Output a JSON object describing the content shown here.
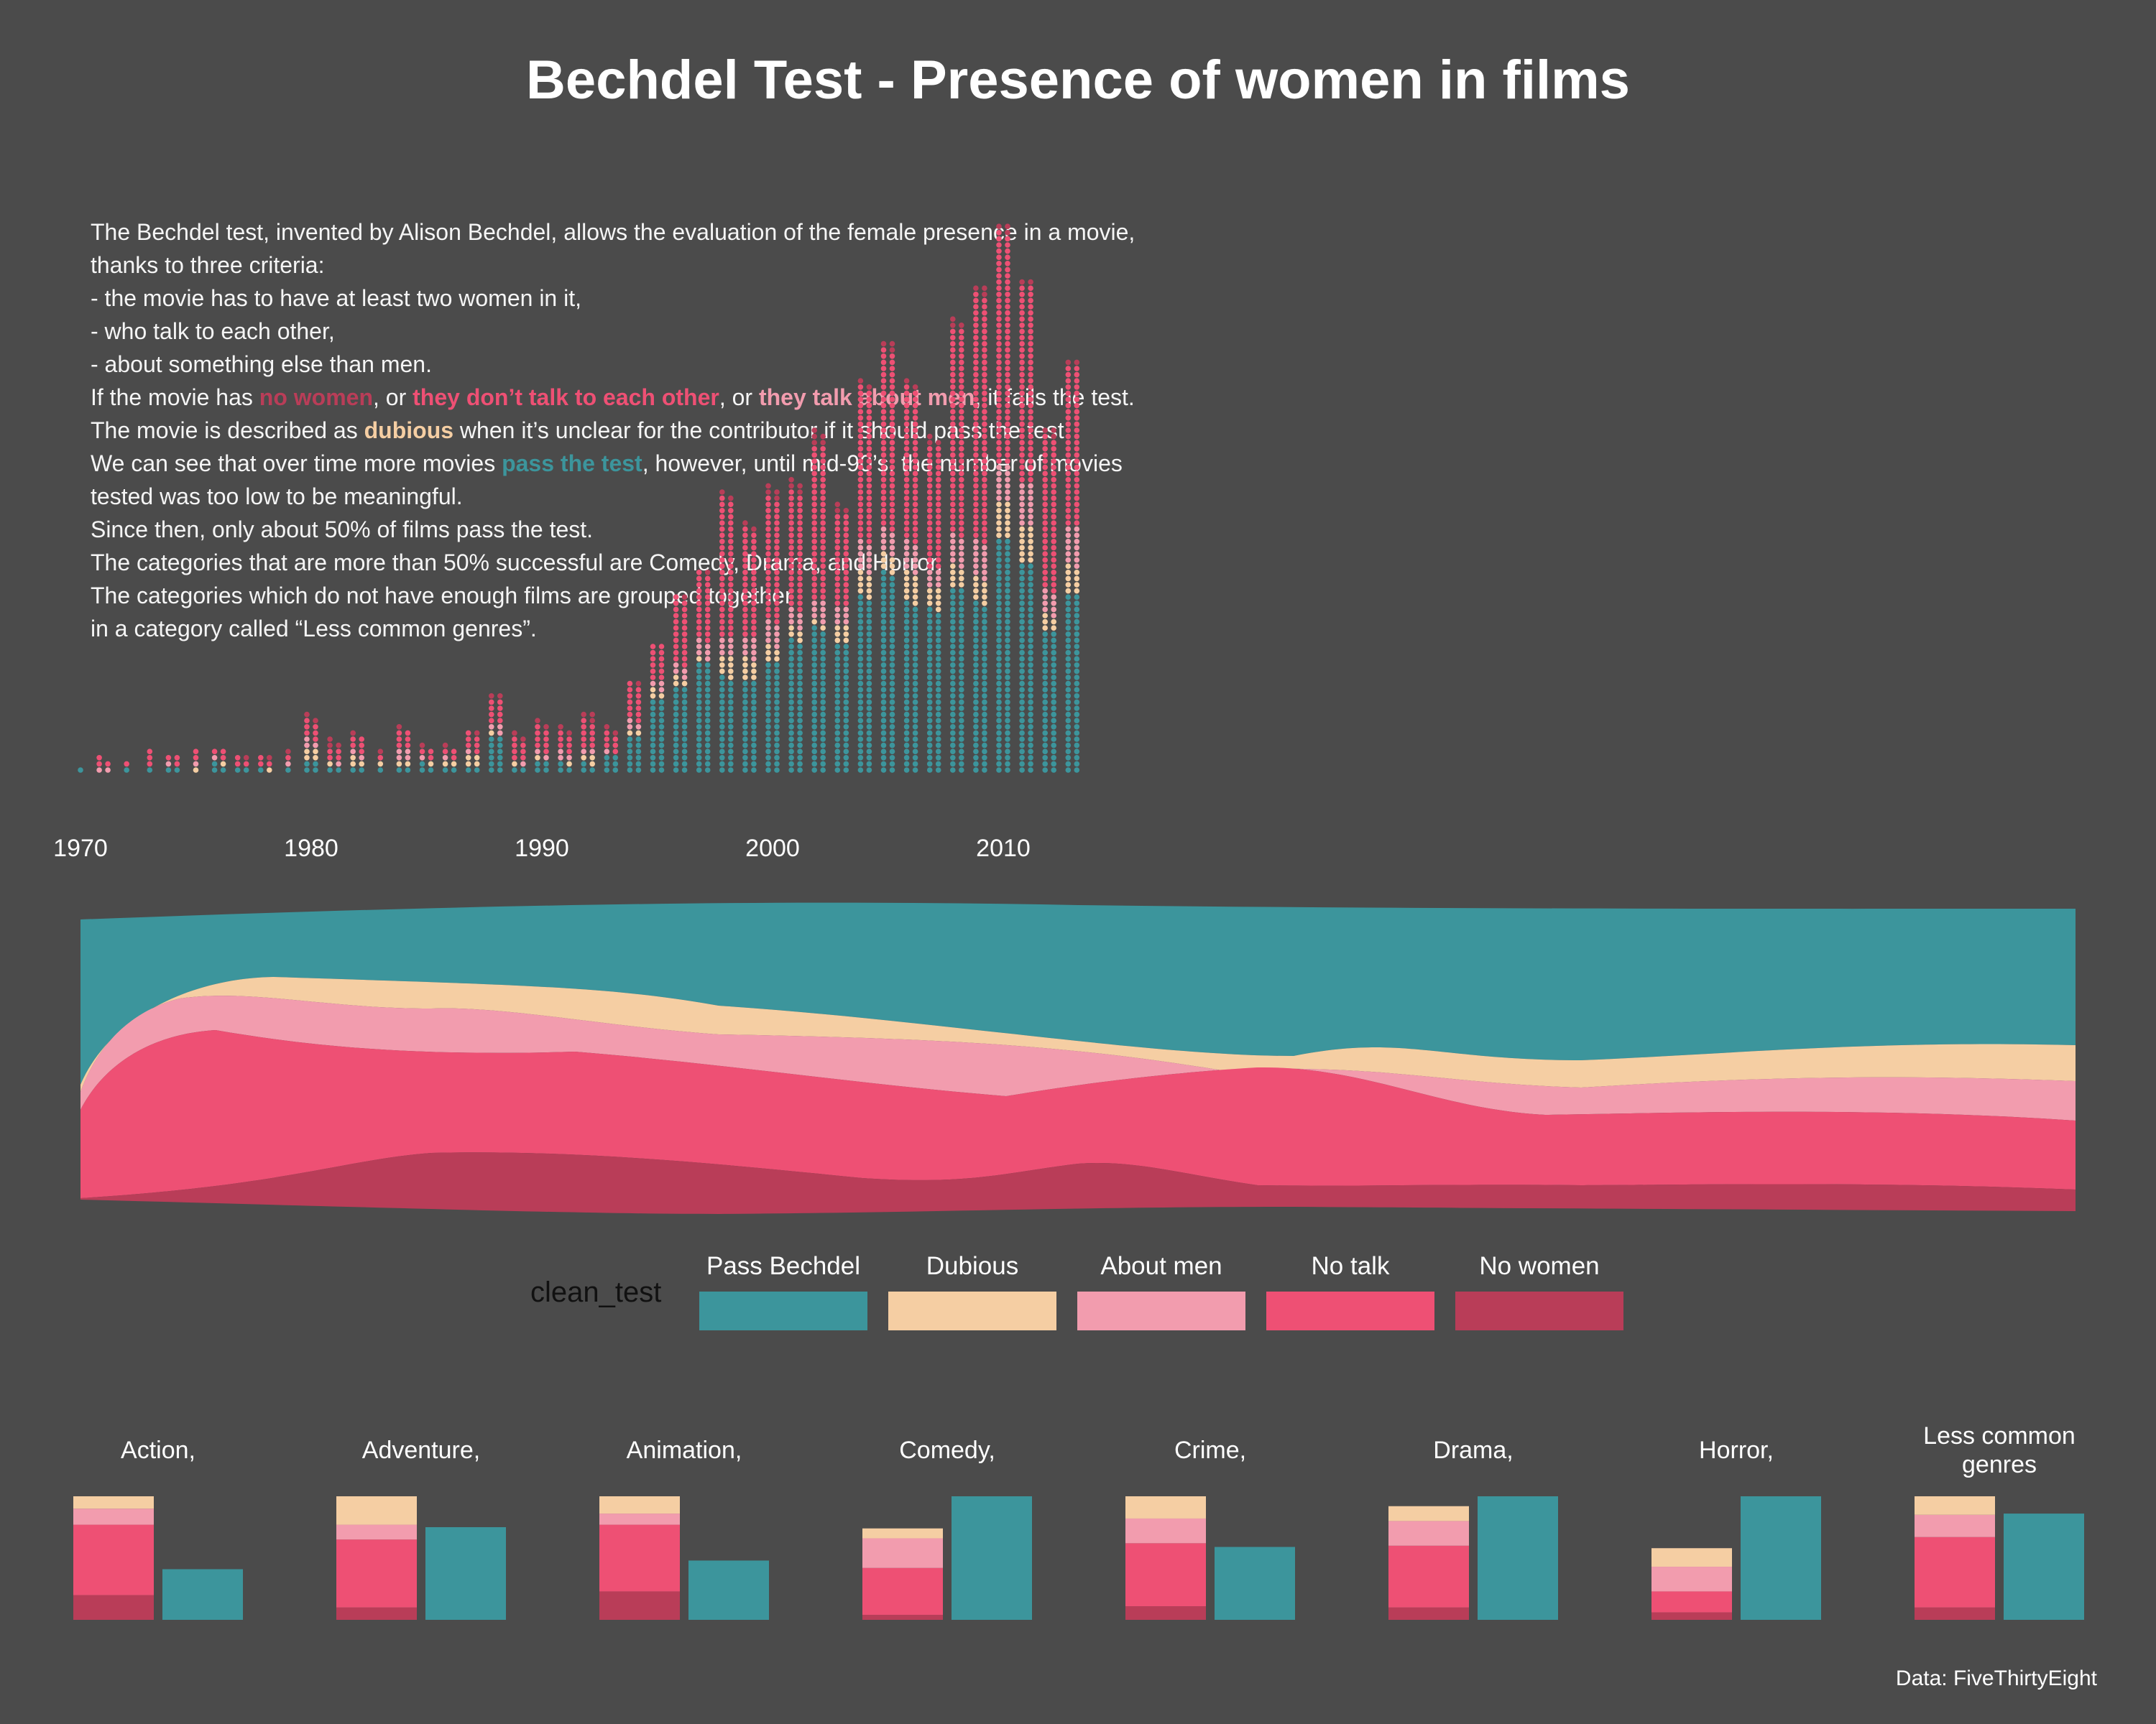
{
  "title": "Bechdel Test - Presence of women in films",
  "intro": [
    {
      "parts": [
        {
          "text": "The Bechdel test, invented by Alison Bechdel, allows the evaluation of the female presence in a movie,"
        }
      ]
    },
    {
      "parts": [
        {
          "text": "thanks to three criteria:"
        }
      ]
    },
    {
      "parts": [
        {
          "text": "- the movie has to have at least two women in it,"
        }
      ]
    },
    {
      "parts": [
        {
          "text": "- who talk to each other,"
        }
      ]
    },
    {
      "parts": [
        {
          "text": "- about something else than men."
        }
      ]
    },
    {
      "parts": [
        {
          "text": "If the movie has "
        },
        {
          "text": "no women",
          "color": "#b93d58"
        },
        {
          "text": ", or "
        },
        {
          "text": "they don’t talk to each other",
          "color": "#ee5074"
        },
        {
          "text": ", or "
        },
        {
          "text": "they talk about men",
          "color": "#f29cae"
        },
        {
          "text": ", it fails the test."
        }
      ]
    },
    {
      "parts": [
        {
          "text": "The movie is described as "
        },
        {
          "text": "dubious",
          "color": "#f5cea3"
        },
        {
          "text": " when it’s unclear for the contributor if it should pass the test."
        }
      ]
    },
    {
      "parts": [
        {
          "text": "We can see that over time more movies "
        },
        {
          "text": "pass the test",
          "color": "#3c959c"
        },
        {
          "text": ", however, until mid-90’s, the number of movies"
        }
      ]
    },
    {
      "parts": [
        {
          "text": "tested was too low to be meaningful."
        }
      ]
    },
    {
      "parts": [
        {
          "text": "Since then, only about 50% of films pass the test."
        }
      ]
    },
    {
      "parts": [
        {
          "text": "The categories that are more than 50% successful are Comedy, Drama, and Horror."
        }
      ]
    },
    {
      "parts": [
        {
          "text": "The categories which do not have enough films are grouped together"
        }
      ]
    },
    {
      "parts": [
        {
          "text": "in a category called “Less common genres”."
        }
      ]
    }
  ],
  "source": "Data: FiveThirtyEight",
  "colors": {
    "background": "#4b4b4b",
    "pass": "#3c959c",
    "dubious": "#f5cea3",
    "men": "#f29cae",
    "notalk": "#ee5074",
    "nowomen": "#b93d58",
    "text": "#ffffff"
  },
  "chart_data": [
    {
      "type": "scatter",
      "subtype": "stacked-dot-columns",
      "x_ticks": [
        "1970",
        "1980",
        "1990",
        "2000",
        "2010"
      ],
      "category_order_bottom_to_top": [
        "Pass Bechdel",
        "Dubious",
        "About men",
        "No talk",
        "No women"
      ],
      "years": [
        1970,
        1971,
        1972,
        1973,
        1974,
        1975,
        1976,
        1977,
        1978,
        1979,
        1980,
        1981,
        1982,
        1983,
        1984,
        1985,
        1986,
        1987,
        1988,
        1989,
        1990,
        1991,
        1992,
        1993,
        1994,
        1995,
        1996,
        1997,
        1998,
        1999,
        2000,
        2001,
        2002,
        2003,
        2004,
        2005,
        2006,
        2007,
        2008,
        2009,
        2010,
        2011,
        2012,
        2013
      ],
      "series": [
        {
          "name": "Pass Bechdel",
          "values": [
            1,
            0,
            1,
            1,
            2,
            0,
            3,
            2,
            1,
            1,
            4,
            2,
            2,
            1,
            2,
            3,
            2,
            2,
            12,
            2,
            4,
            3,
            3,
            6,
            12,
            24,
            28,
            36,
            31,
            30,
            36,
            43,
            47,
            42,
            57,
            65,
            55,
            53,
            60,
            55,
            76,
            68,
            46,
            58
          ]
        },
        {
          "name": "Dubious",
          "values": [
            0,
            0,
            0,
            0,
            0,
            1,
            1,
            0,
            1,
            0,
            4,
            1,
            3,
            1,
            2,
            1,
            2,
            4,
            1,
            1,
            1,
            1,
            3,
            0,
            2,
            3,
            3,
            1,
            7,
            7,
            5,
            4,
            2,
            6,
            8,
            6,
            10,
            7,
            7,
            8,
            12,
            12,
            5,
            9
          ]
        },
        {
          "name": "About men",
          "values": [
            0,
            2,
            0,
            0,
            1,
            1,
            1,
            0,
            0,
            1,
            3,
            1,
            2,
            0,
            4,
            1,
            1,
            1,
            3,
            1,
            2,
            3,
            2,
            1,
            3,
            3,
            4,
            6,
            6,
            7,
            8,
            6,
            7,
            6,
            10,
            8,
            10,
            6,
            10,
            12,
            12,
            14,
            8,
            13
          ]
        },
        {
          "name": "No talk",
          "values": [
            0,
            3,
            1,
            3,
            3,
            2,
            3,
            3,
            3,
            1,
            6,
            4,
            5,
            1,
            6,
            3,
            3,
            6,
            8,
            7,
            8,
            6,
            9,
            6,
            12,
            12,
            22,
            22,
            45,
            35,
            40,
            38,
            50,
            30,
            50,
            58,
            50,
            40,
            67,
            80,
            75,
            64,
            50,
            52
          ]
        },
        {
          "name": "No women",
          "values": [
            0,
            0,
            0,
            0,
            0,
            0,
            0,
            1,
            1,
            1,
            2,
            3,
            1,
            1,
            1,
            1,
            1,
            1,
            2,
            2,
            2,
            2,
            3,
            2,
            1,
            0,
            1,
            1,
            2,
            2,
            4,
            4,
            5,
            3,
            2,
            3,
            2,
            3,
            3,
            3,
            3,
            2,
            3,
            2
          ]
        }
      ]
    },
    {
      "type": "area",
      "subtype": "stacked-proportion-streamgraph",
      "x_range": [
        1970,
        2013
      ],
      "category_order_top_to_bottom": [
        "Pass Bechdel",
        "Dubious",
        "About men",
        "No talk",
        "No women"
      ]
    },
    {
      "type": "bar",
      "subtype": "small-multiples-fail-vs-pass",
      "legend_title": "clean_test",
      "legend": [
        {
          "label": "Pass Bechdel",
          "key": "pass"
        },
        {
          "label": "Dubious",
          "key": "dubious"
        },
        {
          "label": "About men",
          "key": "men"
        },
        {
          "label": "No talk",
          "key": "notalk"
        },
        {
          "label": "No women",
          "key": "nowomen"
        }
      ],
      "genres": [
        {
          "name": "Action,",
          "fail": {
            "nowomen": 0.2,
            "notalk": 0.57,
            "men": 0.13,
            "dubious": 0.1
          },
          "pass": 0.41
        },
        {
          "name": "Adventure,",
          "fail": {
            "nowomen": 0.1,
            "notalk": 0.55,
            "men": 0.12,
            "dubious": 0.23
          },
          "pass": 0.75
        },
        {
          "name": "Animation,",
          "fail": {
            "nowomen": 0.23,
            "notalk": 0.54,
            "men": 0.09,
            "dubious": 0.14
          },
          "pass": 0.48
        },
        {
          "name": "Comedy,",
          "fail": {
            "nowomen": 0.04,
            "notalk": 0.38,
            "men": 0.24,
            "dubious": 0.08
          },
          "pass": 1.0
        },
        {
          "name": "Crime,",
          "fail": {
            "nowomen": 0.11,
            "notalk": 0.51,
            "men": 0.2,
            "dubious": 0.18
          },
          "pass": 0.59
        },
        {
          "name": "Drama,",
          "fail": {
            "nowomen": 0.1,
            "notalk": 0.5,
            "men": 0.2,
            "dubious": 0.12
          },
          "pass": 1.0
        },
        {
          "name": "Horror,",
          "fail": {
            "nowomen": 0.06,
            "notalk": 0.17,
            "men": 0.2,
            "dubious": 0.15
          },
          "pass": 1.0
        },
        {
          "name": "Less common genres",
          "fail": {
            "nowomen": 0.1,
            "notalk": 0.57,
            "men": 0.18,
            "dubious": 0.15
          },
          "pass": 0.86
        }
      ]
    }
  ]
}
